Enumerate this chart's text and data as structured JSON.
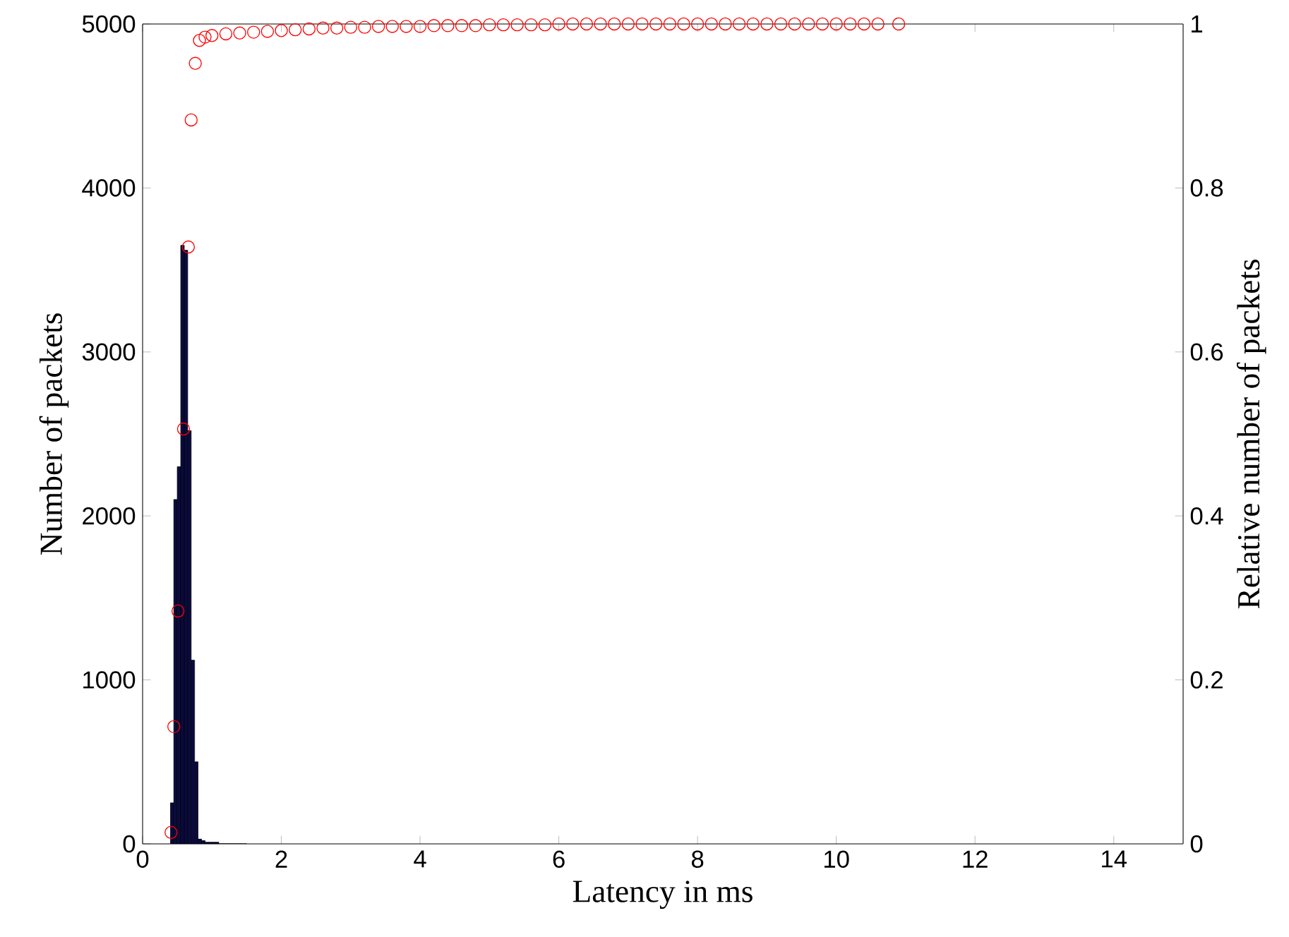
{
  "chart_data": {
    "type": "histogram",
    "xlabel": "Latency in ms",
    "ylabel": "Number of packets",
    "y2label": "Relative number of packets",
    "xlim": [
      0,
      15
    ],
    "xticks": [
      0,
      2,
      4,
      6,
      8,
      10,
      12,
      14
    ],
    "ylim": [
      0,
      5000
    ],
    "yticks": [
      0,
      1000,
      2000,
      3000,
      4000,
      5000
    ],
    "y2lim": [
      0,
      1
    ],
    "y2ticks": [
      0,
      0.2,
      0.4,
      0.6,
      0.8,
      1
    ],
    "series": [
      {
        "color": "#0a0a40",
        "bins": [
          0.4,
          0.45,
          0.5,
          0.55,
          0.6,
          0.65,
          0.7,
          0.75,
          0.8,
          0.85,
          0.9,
          0.95,
          1.0,
          1.05,
          1.1,
          1.15,
          1.2,
          1.25,
          1.3,
          1.35,
          1.4,
          1.45,
          1.5
        ],
        "values": [
          250,
          2100,
          2300,
          3650,
          3620,
          2520,
          1120,
          500,
          30,
          20,
          10,
          10,
          10,
          10,
          0,
          0,
          0,
          0,
          0,
          0,
          0,
          0
        ]
      },
      {
        "type": "scatter",
        "axis": "y2",
        "marker": "circle",
        "color": "#ff0000",
        "x": [
          0.41,
          0.45,
          0.51,
          0.59,
          0.66,
          0.7,
          0.76,
          0.82,
          0.9,
          1.0,
          1.2,
          1.4,
          1.6,
          1.8,
          2.0,
          2.2,
          2.4,
          2.6,
          2.8,
          3.0,
          3.2,
          3.4,
          3.6,
          3.8,
          4.0,
          4.2,
          4.4,
          4.6,
          4.8,
          5.0,
          5.2,
          5.4,
          5.6,
          5.8,
          6.0,
          6.2,
          6.4,
          6.6,
          6.8,
          7.0,
          7.2,
          7.4,
          7.6,
          7.8,
          8.0,
          8.2,
          8.4,
          8.6,
          8.8,
          9.0,
          9.2,
          9.4,
          9.6,
          9.8,
          10.0,
          10.2,
          10.4,
          10.6,
          10.9
        ],
        "values": [
          0.014,
          0.143,
          0.284,
          0.506,
          0.728,
          0.883,
          0.952,
          0.98,
          0.984,
          0.986,
          0.988,
          0.989,
          0.99,
          0.991,
          0.992,
          0.993,
          0.994,
          0.995,
          0.995,
          0.996,
          0.996,
          0.997,
          0.997,
          0.997,
          0.997,
          0.998,
          0.998,
          0.998,
          0.998,
          0.999,
          0.999,
          0.999,
          0.999,
          0.999,
          1.0,
          1.0,
          1.0,
          1.0,
          1.0,
          1.0,
          1.0,
          1.0,
          1.0,
          1.0,
          1.0,
          1.0,
          1.0,
          1.0,
          1.0,
          1.0,
          1.0,
          1.0,
          1.0,
          1.0,
          1.0,
          1.0,
          1.0,
          1.0,
          1.0
        ]
      }
    ]
  }
}
